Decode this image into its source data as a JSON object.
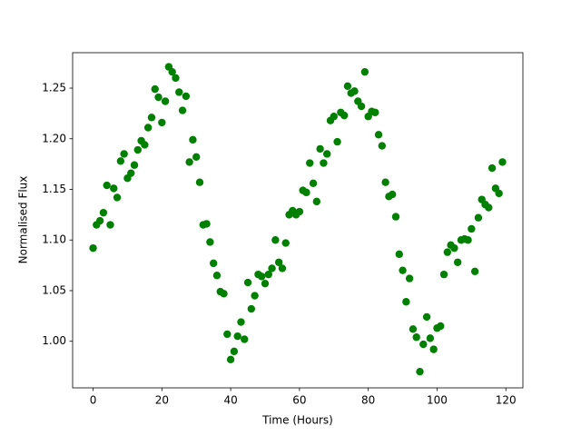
{
  "chart_data": {
    "type": "scatter",
    "xlabel": "Time (Hours)",
    "ylabel": "Normalised Flux",
    "color": "#008000",
    "xlim": [
      -5.95,
      124.95
    ],
    "ylim": [
      0.954,
      1.285
    ],
    "xticks": [
      0,
      20,
      40,
      60,
      80,
      100,
      120
    ],
    "yticks": [
      {
        "value": 1.0,
        "label": "1.00"
      },
      1.05,
      {
        "value": 1.1,
        "label": "1.10"
      },
      1.15,
      {
        "value": 1.2,
        "label": "1.20"
      },
      1.25
    ],
    "grid": false,
    "x": [
      0,
      1,
      2,
      3,
      4,
      5,
      6,
      7,
      8,
      9,
      10,
      11,
      12,
      13,
      14,
      15,
      16,
      17,
      18,
      19,
      20,
      21,
      22,
      23,
      24,
      25,
      26,
      27,
      28,
      29,
      30,
      31,
      32,
      33,
      34,
      35,
      36,
      37,
      38,
      39,
      40,
      41,
      42,
      43,
      44,
      45,
      46,
      47,
      48,
      49,
      50,
      51,
      52,
      53,
      54,
      55,
      56,
      57,
      58,
      59,
      60,
      61,
      62,
      63,
      64,
      65,
      66,
      67,
      68,
      69,
      70,
      71,
      72,
      73,
      74,
      75,
      76,
      77,
      78,
      79,
      80,
      81,
      82,
      83,
      84,
      85,
      86,
      87,
      88,
      89,
      90,
      91,
      92,
      93,
      94,
      95,
      96,
      97,
      98,
      99,
      100,
      101,
      102,
      103,
      104,
      105,
      106,
      107,
      108,
      109,
      110,
      111,
      112,
      113,
      114,
      115,
      116,
      117,
      118,
      119
    ],
    "values": [
      1.092,
      1.115,
      1.119,
      1.127,
      1.154,
      1.115,
      1.151,
      1.142,
      1.178,
      1.185,
      1.161,
      1.166,
      1.174,
      1.189,
      1.198,
      1.194,
      1.211,
      1.221,
      1.249,
      1.241,
      1.216,
      1.237,
      1.271,
      1.266,
      1.26,
      1.246,
      1.228,
      1.242,
      1.177,
      1.199,
      1.182,
      1.157,
      1.115,
      1.116,
      1.098,
      1.077,
      1.065,
      1.049,
      1.047,
      1.007,
      0.982,
      0.99,
      1.005,
      1.019,
      1.002,
      1.058,
      1.032,
      1.045,
      1.066,
      1.064,
      1.057,
      1.066,
      1.072,
      1.1,
      1.078,
      1.072,
      1.097,
      1.125,
      1.129,
      1.125,
      1.128,
      1.149,
      1.147,
      1.176,
      1.156,
      1.138,
      1.19,
      1.176,
      1.185,
      1.218,
      1.222,
      1.197,
      1.226,
      1.223,
      1.252,
      1.245,
      1.247,
      1.237,
      1.232,
      1.266,
      1.222,
      1.227,
      1.226,
      1.204,
      1.193,
      1.157,
      1.143,
      1.145,
      1.123,
      1.086,
      1.07,
      1.039,
      1.062,
      1.012,
      1.004,
      0.97,
      0.997,
      1.024,
      1.003,
      0.992,
      1.013,
      1.015,
      1.066,
      1.088,
      1.095,
      1.092,
      1.078,
      1.1,
      1.101,
      1.1,
      1.111,
      1.069,
      1.122,
      1.14,
      1.135,
      1.132,
      1.171,
      1.151,
      1.146,
      1.177
    ]
  }
}
